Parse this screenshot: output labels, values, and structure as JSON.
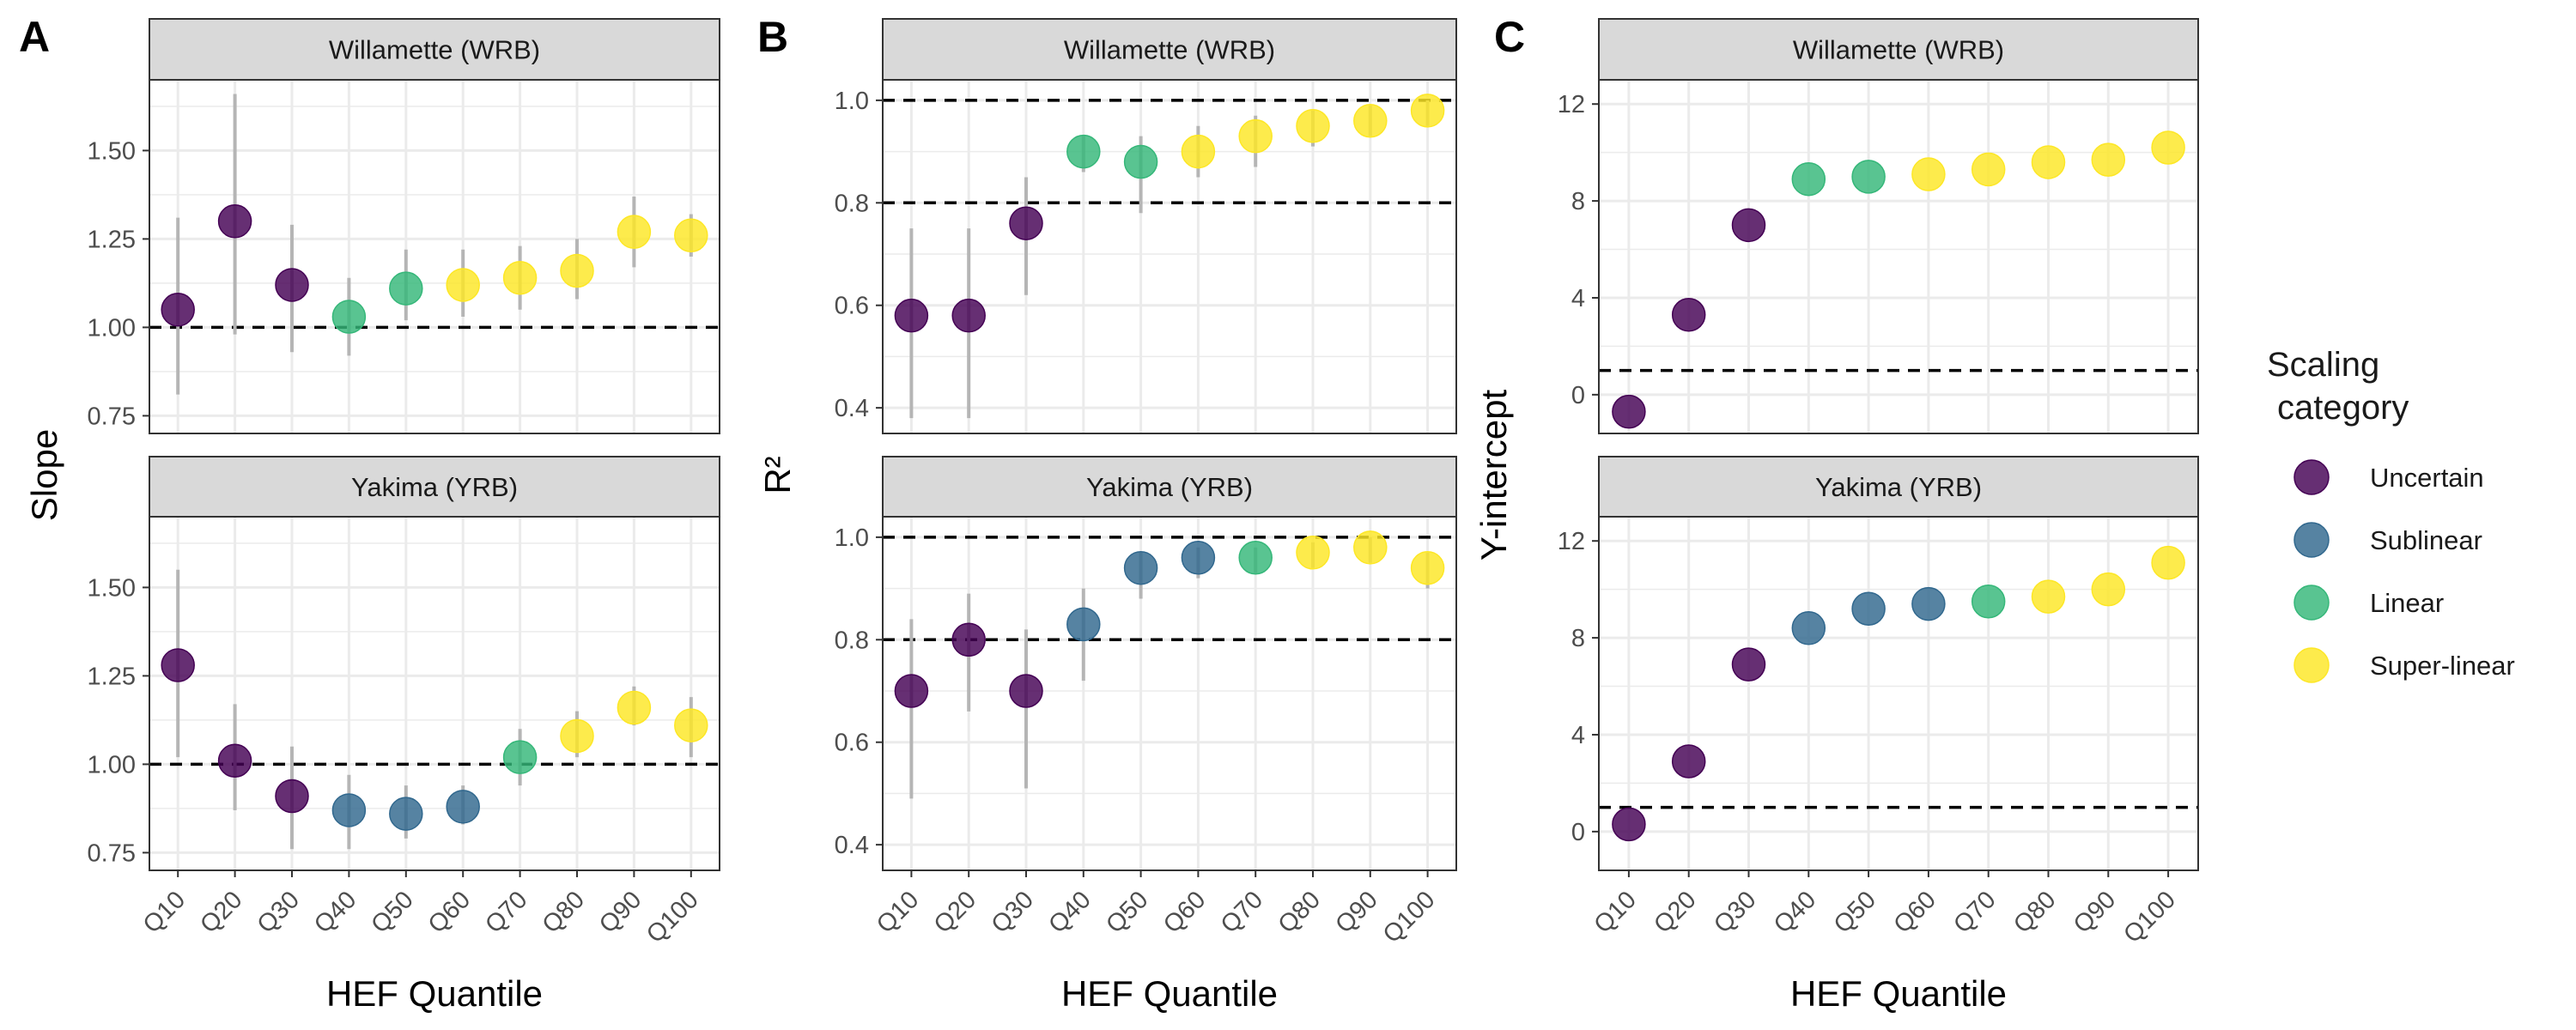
{
  "figure": {
    "x_axis_title": "HEF Quantile",
    "legend": {
      "title_line1": "Scaling",
      "title_line2": "category",
      "placement": "right",
      "items": [
        {
          "label": "Uncertain",
          "color": "#440154"
        },
        {
          "label": "Sublinear",
          "color": "#31688e"
        },
        {
          "label": "Linear",
          "color": "#35b779"
        },
        {
          "label": "Super-linear",
          "color": "#fde725"
        }
      ]
    },
    "colors": {
      "Uncertain": "#440154",
      "Sublinear": "#31688e",
      "Linear": "#35b779",
      "Super-linear": "#fde725",
      "strip_background": "#d9d9d9",
      "error_bar": "#b5b5b5",
      "grid": "#ebebeb"
    }
  },
  "chart_data": [
    {
      "type": "scatter",
      "panel_label": "A",
      "ylabel": "Slope",
      "xlabel": "HEF Quantile",
      "categories": [
        "Q10",
        "Q20",
        "Q30",
        "Q40",
        "Q50",
        "Q60",
        "Q70",
        "Q80",
        "Q90",
        "Q100"
      ],
      "ylim": [
        0.7,
        1.7
      ],
      "yticks": [
        0.75,
        1.0,
        1.25,
        1.5
      ],
      "ytick_labels": [
        "0.75",
        "1.00",
        "1.25",
        "1.50"
      ],
      "reference_lines": [
        1.0
      ],
      "grid": true,
      "facets": [
        {
          "title": "Willamette (WRB)",
          "values": [
            1.05,
            1.3,
            1.12,
            1.03,
            1.11,
            1.12,
            1.14,
            1.16,
            1.27,
            1.26
          ],
          "lower": [
            0.81,
            0.98,
            0.93,
            0.92,
            1.02,
            1.03,
            1.05,
            1.08,
            1.17,
            1.2
          ],
          "upper": [
            1.31,
            1.66,
            1.29,
            1.14,
            1.22,
            1.22,
            1.23,
            1.25,
            1.37,
            1.32
          ],
          "category": [
            "Uncertain",
            "Uncertain",
            "Uncertain",
            "Linear",
            "Linear",
            "Super-linear",
            "Super-linear",
            "Super-linear",
            "Super-linear",
            "Super-linear"
          ]
        },
        {
          "title": "Yakima (YRB)",
          "values": [
            1.28,
            1.01,
            0.91,
            0.87,
            0.86,
            0.88,
            1.02,
            1.08,
            1.16,
            1.11
          ],
          "lower": [
            1.02,
            0.87,
            0.76,
            0.76,
            0.79,
            0.83,
            0.94,
            1.02,
            1.11,
            1.02
          ],
          "upper": [
            1.55,
            1.17,
            1.05,
            0.97,
            0.94,
            0.94,
            1.1,
            1.15,
            1.22,
            1.19
          ],
          "category": [
            "Uncertain",
            "Uncertain",
            "Uncertain",
            "Sublinear",
            "Sublinear",
            "Sublinear",
            "Linear",
            "Super-linear",
            "Super-linear",
            "Super-linear"
          ]
        }
      ]
    },
    {
      "type": "scatter",
      "panel_label": "B",
      "ylabel": "R²",
      "xlabel": "HEF Quantile",
      "categories": [
        "Q10",
        "Q20",
        "Q30",
        "Q40",
        "Q50",
        "Q60",
        "Q70",
        "Q80",
        "Q90",
        "Q100"
      ],
      "ylim": [
        0.35,
        1.04
      ],
      "yticks": [
        0.4,
        0.6,
        0.8,
        1.0
      ],
      "ytick_labels": [
        "0.4",
        "0.6",
        "0.8",
        "1.0"
      ],
      "reference_lines": [
        0.8,
        1.0
      ],
      "grid": true,
      "facets": [
        {
          "title": "Willamette (WRB)",
          "values": [
            0.58,
            0.58,
            0.76,
            0.9,
            0.88,
            0.9,
            0.93,
            0.95,
            0.96,
            0.98
          ],
          "lower": [
            0.38,
            0.38,
            0.62,
            0.86,
            0.78,
            0.85,
            0.87,
            0.91,
            0.93,
            0.95
          ],
          "upper": [
            0.75,
            0.75,
            0.85,
            0.93,
            0.93,
            0.95,
            0.97,
            0.98,
            0.99,
            1.0
          ],
          "category": [
            "Uncertain",
            "Uncertain",
            "Uncertain",
            "Linear",
            "Linear",
            "Super-linear",
            "Super-linear",
            "Super-linear",
            "Super-linear",
            "Super-linear"
          ]
        },
        {
          "title": "Yakima (YRB)",
          "values": [
            0.7,
            0.8,
            0.7,
            0.83,
            0.94,
            0.96,
            0.96,
            0.97,
            0.98,
            0.94
          ],
          "lower": [
            0.49,
            0.66,
            0.51,
            0.72,
            0.88,
            0.92,
            0.93,
            0.94,
            0.95,
            0.9
          ],
          "upper": [
            0.84,
            0.89,
            0.82,
            0.9,
            0.97,
            0.98,
            0.98,
            0.99,
            1.0,
            0.97
          ],
          "category": [
            "Uncertain",
            "Uncertain",
            "Uncertain",
            "Sublinear",
            "Sublinear",
            "Sublinear",
            "Linear",
            "Super-linear",
            "Super-linear",
            "Super-linear"
          ]
        }
      ]
    },
    {
      "type": "scatter",
      "panel_label": "C",
      "ylabel": "Y-intercept",
      "xlabel": "HEF Quantile",
      "categories": [
        "Q10",
        "Q20",
        "Q30",
        "Q40",
        "Q50",
        "Q60",
        "Q70",
        "Q80",
        "Q90",
        "Q100"
      ],
      "ylim": [
        -1.6,
        13.0
      ],
      "yticks": [
        0,
        4,
        8,
        12
      ],
      "ytick_labels": [
        "0",
        "4",
        "8",
        "12"
      ],
      "reference_lines": [
        1.0
      ],
      "grid": true,
      "facets": [
        {
          "title": "Willamette (WRB)",
          "values": [
            -0.7,
            3.3,
            7.0,
            8.9,
            9.0,
            9.1,
            9.3,
            9.6,
            9.7,
            10.2
          ],
          "category": [
            "Uncertain",
            "Uncertain",
            "Uncertain",
            "Linear",
            "Linear",
            "Super-linear",
            "Super-linear",
            "Super-linear",
            "Super-linear",
            "Super-linear"
          ]
        },
        {
          "title": "Yakima (YRB)",
          "values": [
            0.3,
            2.9,
            6.9,
            8.4,
            9.2,
            9.4,
            9.5,
            9.7,
            10.0,
            11.1
          ],
          "category": [
            "Uncertain",
            "Uncertain",
            "Uncertain",
            "Sublinear",
            "Sublinear",
            "Sublinear",
            "Linear",
            "Super-linear",
            "Super-linear",
            "Super-linear"
          ]
        }
      ]
    }
  ]
}
